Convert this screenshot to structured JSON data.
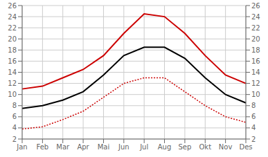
{
  "chart_data": {
    "type": "line",
    "categories": [
      "Jan",
      "Feb",
      "Mar",
      "Apr",
      "Mai",
      "Jun",
      "Jul",
      "Aug",
      "Sep",
      "Okt",
      "Nov",
      "Des"
    ],
    "series": [
      {
        "color": "#cc0000",
        "line_style": "solid",
        "values": [
          11.0,
          11.5,
          13.0,
          14.5,
          17.0,
          21.0,
          24.5,
          24.0,
          21.0,
          17.0,
          13.5,
          12.0
        ]
      },
      {
        "color": "#000000",
        "line_style": "solid",
        "values": [
          7.5,
          8.0,
          9.0,
          10.5,
          13.5,
          17.0,
          18.5,
          18.5,
          16.5,
          13.0,
          10.0,
          8.5
        ]
      },
      {
        "color": "#cc0000",
        "line_style": "dotted",
        "values": [
          3.8,
          4.2,
          5.5,
          7.0,
          9.5,
          12.0,
          13.0,
          13.0,
          10.5,
          8.0,
          6.0,
          5.0
        ]
      }
    ],
    "ylim": [
      2,
      26
    ],
    "yticks": [
      2,
      4,
      6,
      8,
      10,
      12,
      14,
      16,
      18,
      20,
      22,
      24,
      26
    ],
    "y2lim": [
      2,
      26
    ],
    "y2ticks": [
      2,
      4,
      6,
      8,
      10,
      12,
      14,
      16,
      18,
      20,
      22,
      24,
      26
    ],
    "grid": true
  }
}
